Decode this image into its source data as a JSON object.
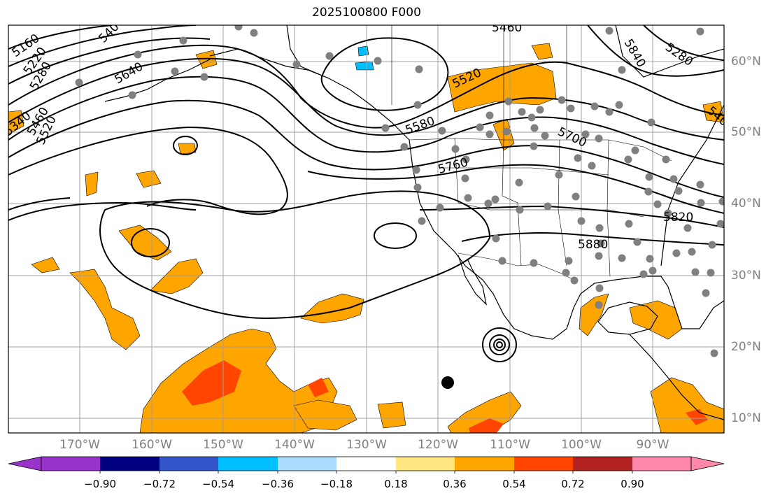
{
  "title": "2025100800 F000",
  "longitude_labels": [
    "170°W",
    "160°W",
    "150°W",
    "140°W",
    "130°W",
    "120°W",
    "110°W",
    "100°W",
    "90°W"
  ],
  "latitude_labels": [
    "60°N",
    "50°N",
    "40°N",
    "30°N",
    "20°N",
    "10°N"
  ],
  "contour_labels": [
    "5160",
    "5220",
    "5280",
    "540",
    "5640",
    "5340",
    "5460",
    "5520",
    "5580",
    "5760",
    "5460",
    "5520",
    "5700",
    "5820",
    "5880",
    "5840",
    "5280",
    "540"
  ],
  "colorbar": {
    "ticks": [
      "−0.90",
      "−0.72",
      "−0.54",
      "−0.36",
      "−0.18",
      "0.18",
      "0.36",
      "0.54",
      "0.72",
      "0.90"
    ],
    "colors": [
      "#9933cc",
      "#000080",
      "#3355cc",
      "#00bfff",
      "#aadcff",
      "#ffffff",
      "#ffe680",
      "#ffa500",
      "#ff4500",
      "#b22222",
      "#ff88aa",
      "#ff88aa"
    ]
  },
  "colors": {
    "fill_light": "#ffe680",
    "fill_orange": "#ffa500",
    "fill_red": "#ff4500",
    "fill_blue": "#00bfff",
    "station_dot": "#808080",
    "grid": "#a0a0a0"
  }
}
